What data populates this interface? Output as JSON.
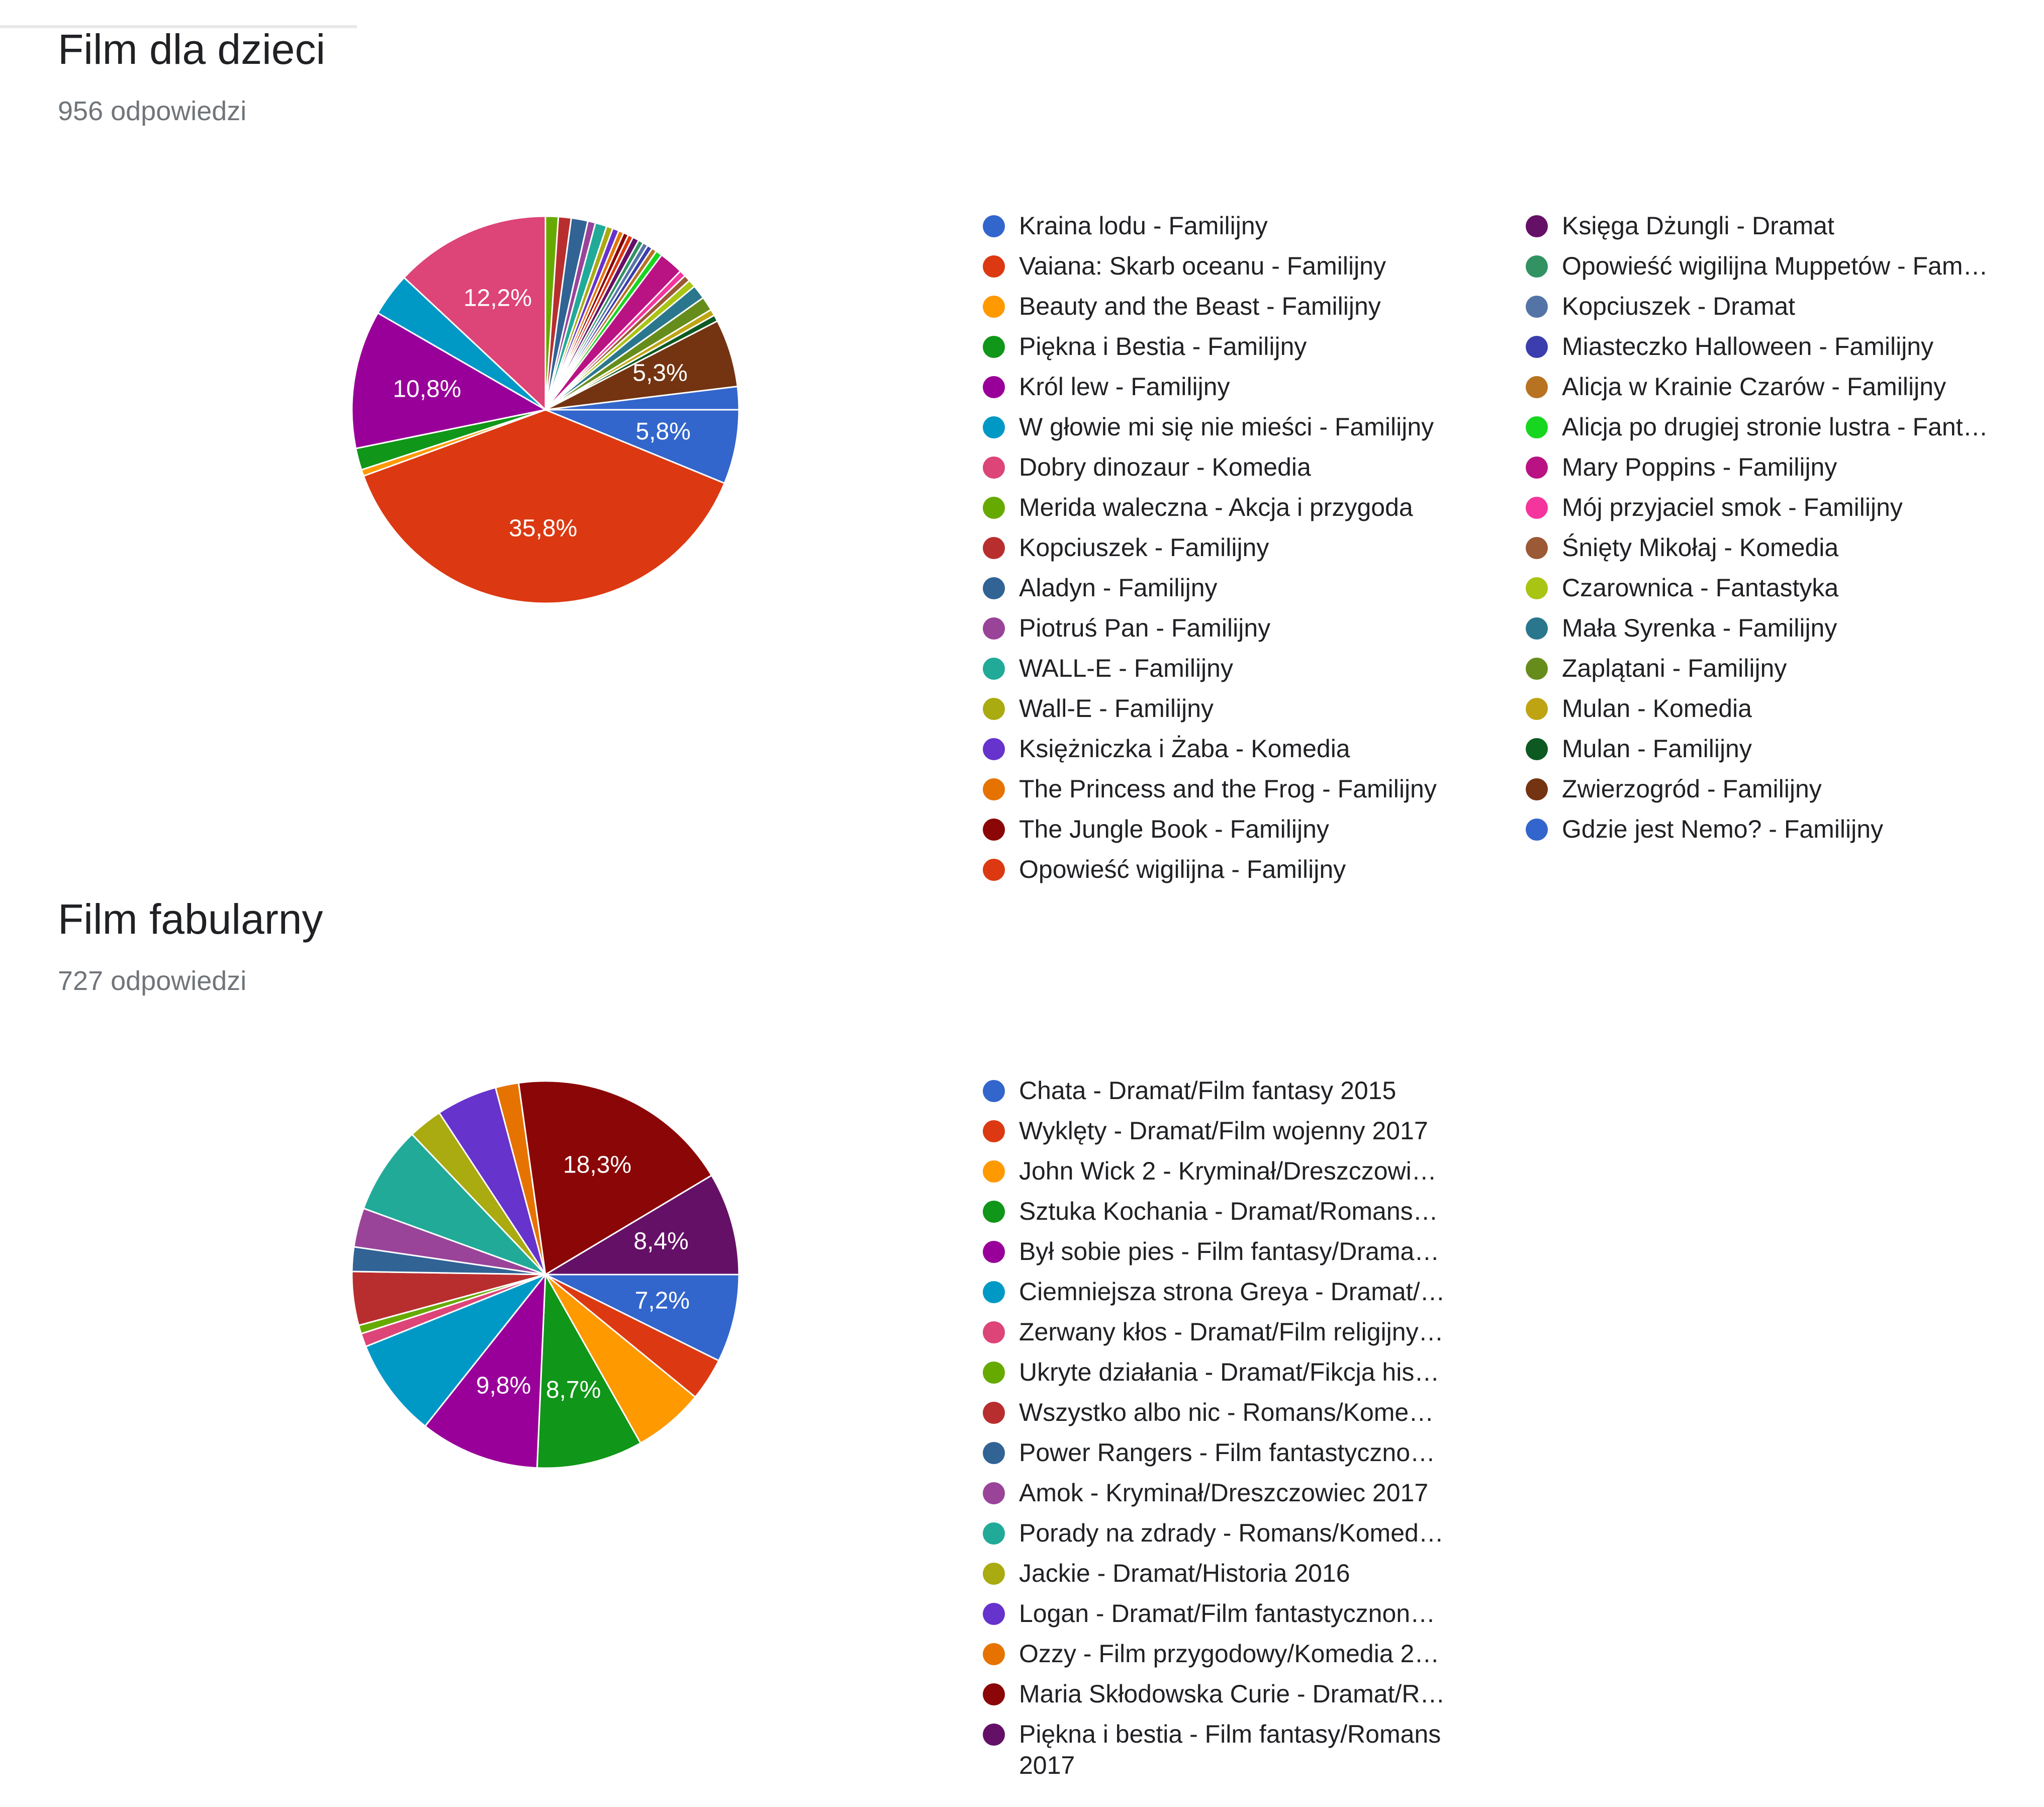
{
  "chart_data": [
    {
      "type": "pie",
      "title": "Film dla dzieci",
      "subtitle": "956 odpowiedzi",
      "legend_position": "right",
      "legend_columns": 2,
      "slices": [
        {
          "label": "Kraina lodu - Familijny",
          "value": 5.8,
          "display": "5,8%",
          "color": "#3366cc"
        },
        {
          "label": "Vaiana: Skarb oceanu - Familijny",
          "value": 35.8,
          "display": "35,8%",
          "color": "#dc3912"
        },
        {
          "label": "Beauty and the Beast - Familijny",
          "value": 0.5,
          "display": "",
          "color": "#ff9900"
        },
        {
          "label": "Piękna i Bestia - Familijny",
          "value": 1.7,
          "display": "",
          "color": "#109618"
        },
        {
          "label": "Król lew - Familijny",
          "value": 10.8,
          "display": "10,8%",
          "color": "#990099"
        },
        {
          "label": "W głowie mi się nie mieści - Familijny",
          "value": 3.4,
          "display": "",
          "color": "#0099c6"
        },
        {
          "label": "Dobry dinozaur - Komedia",
          "value": 12.2,
          "display": "12,2%",
          "color": "#dd4477"
        },
        {
          "label": "Merida waleczna - Akcja i przygoda",
          "value": 1.0,
          "display": "",
          "color": "#66aa00"
        },
        {
          "label": "Kopciuszek - Familijny",
          "value": 1.0,
          "display": "",
          "color": "#b82e2e"
        },
        {
          "label": "Aladyn - Familijny",
          "value": 1.3,
          "display": "",
          "color": "#316395"
        },
        {
          "label": "Piotruś Pan - Familijny",
          "value": 0.6,
          "display": "",
          "color": "#994499"
        },
        {
          "label": "WALL-E - Familijny",
          "value": 0.9,
          "display": "",
          "color": "#22aa99"
        },
        {
          "label": "Wall-E - Familijny",
          "value": 0.5,
          "display": "",
          "color": "#aaaa11"
        },
        {
          "label": "Księżniczka i Żaba - Komedia",
          "value": 0.5,
          "display": "",
          "color": "#6633cc"
        },
        {
          "label": "The Princess and the Frog - Familijny",
          "value": 0.4,
          "display": "",
          "color": "#e67300"
        },
        {
          "label": "The Jungle Book - Familijny",
          "value": 0.4,
          "display": "",
          "color": "#8b0707"
        },
        {
          "label": "Opowieść wigilijna - Familijny",
          "value": 0.4,
          "display": "",
          "color": "#dc3912"
        },
        {
          "label": "Księga Dżungli - Dramat",
          "value": 0.5,
          "display": "",
          "color": "#651067"
        },
        {
          "label": "Opowieść wigilijna Muppetów - Fam…",
          "value": 0.4,
          "display": "",
          "color": "#329262"
        },
        {
          "label": "Kopciuszek - Dramat",
          "value": 0.4,
          "display": "",
          "color": "#5574a6"
        },
        {
          "label": "Miasteczko Halloween - Familijny",
          "value": 0.4,
          "display": "",
          "color": "#3b3eac"
        },
        {
          "label": "Alicja w Krainie Czarów - Familijny",
          "value": 0.4,
          "display": "",
          "color": "#b77322"
        },
        {
          "label": "Alicja po drugiej stronie lustra - Fant…",
          "value": 0.5,
          "display": "",
          "color": "#16d620"
        },
        {
          "label": "Mary Poppins - Familijny",
          "value": 1.9,
          "display": "",
          "color": "#b91383"
        },
        {
          "label": "Mój przyjaciel smok - Familijny",
          "value": 0.5,
          "display": "",
          "color": "#f4359e"
        },
        {
          "label": "Śnięty Mikołaj - Komedia",
          "value": 0.5,
          "display": "",
          "color": "#9c5935"
        },
        {
          "label": "Czarownica - Fantastyka",
          "value": 0.6,
          "display": "",
          "color": "#a9c413"
        },
        {
          "label": "Mała Syrenka - Familijny",
          "value": 1.1,
          "display": "",
          "color": "#2a778d"
        },
        {
          "label": "Zaplątani - Familijny",
          "value": 1.1,
          "display": "",
          "color": "#668d1c"
        },
        {
          "label": "Mulan - Komedia",
          "value": 0.5,
          "display": "",
          "color": "#bea413"
        },
        {
          "label": "Mulan - Familijny",
          "value": 0.5,
          "display": "",
          "color": "#0c5922"
        },
        {
          "label": "Zwierzogród - Familijny",
          "value": 5.3,
          "display": "5,3%",
          "color": "#743411"
        },
        {
          "label": "Gdzie jest Nemo? - Familijny",
          "value": 1.8,
          "display": "",
          "color": "#3366cc"
        }
      ]
    },
    {
      "type": "pie",
      "title": "Film fabularny",
      "subtitle": "727 odpowiedzi",
      "legend_position": "right",
      "legend_columns": 1,
      "slices": [
        {
          "label": "Chata - Dramat/Film fantasy 2015",
          "value": 7.2,
          "display": "7,2%",
          "color": "#3366cc"
        },
        {
          "label": "Wyklęty - Dramat/Film wojenny 2017",
          "value": 3.5,
          "display": "",
          "color": "#dc3912"
        },
        {
          "label": "John Wick 2 - Kryminał/Dreszczowi…",
          "value": 5.8,
          "display": "",
          "color": "#ff9900"
        },
        {
          "label": "Sztuka Kochania - Dramat/Romans…",
          "value": 8.7,
          "display": "8,7%",
          "color": "#109618"
        },
        {
          "label": "Był sobie pies - Film fantasy/Drama…",
          "value": 9.8,
          "display": "9,8%",
          "color": "#990099"
        },
        {
          "label": "Ciemniejsza strona Greya - Dramat/…",
          "value": 8.1,
          "display": "",
          "color": "#0099c6"
        },
        {
          "label": "Zerwany kłos - Dramat/Film religijny…",
          "value": 1.1,
          "display": "",
          "color": "#dd4477"
        },
        {
          "label": "Ukryte działania - Dramat/Fikcja his…",
          "value": 0.7,
          "display": "",
          "color": "#66aa00"
        },
        {
          "label": "Wszystko albo nic - Romans/Kome…",
          "value": 4.4,
          "display": "",
          "color": "#b82e2e"
        },
        {
          "label": "Power Rangers - Film fantastyczno…",
          "value": 2.0,
          "display": "",
          "color": "#316395"
        },
        {
          "label": "Amok - Kryminał/Dreszczowiec 2017",
          "value": 3.2,
          "display": "",
          "color": "#994499"
        },
        {
          "label": "Porady na zdrady - Romans/Komed…",
          "value": 7.2,
          "display": "",
          "color": "#22aa99"
        },
        {
          "label": "Jackie - Dramat/Historia 2016",
          "value": 2.8,
          "display": "",
          "color": "#aaaa11"
        },
        {
          "label": "Logan - Dramat/Film fantastycznon…",
          "value": 5.0,
          "display": "",
          "color": "#6633cc"
        },
        {
          "label": "Ozzy - Film przygodowy/Komedia 2…",
          "value": 1.9,
          "display": "",
          "color": "#e67300"
        },
        {
          "label": "Maria Skłodowska Curie - Dramat/R…",
          "value": 18.3,
          "display": "18,3%",
          "color": "#8b0707"
        },
        {
          "label": "Piękna i bestia - Film fantasy/Romans 2017",
          "value": 8.4,
          "display": "8,4%",
          "color": "#651067"
        }
      ]
    }
  ]
}
